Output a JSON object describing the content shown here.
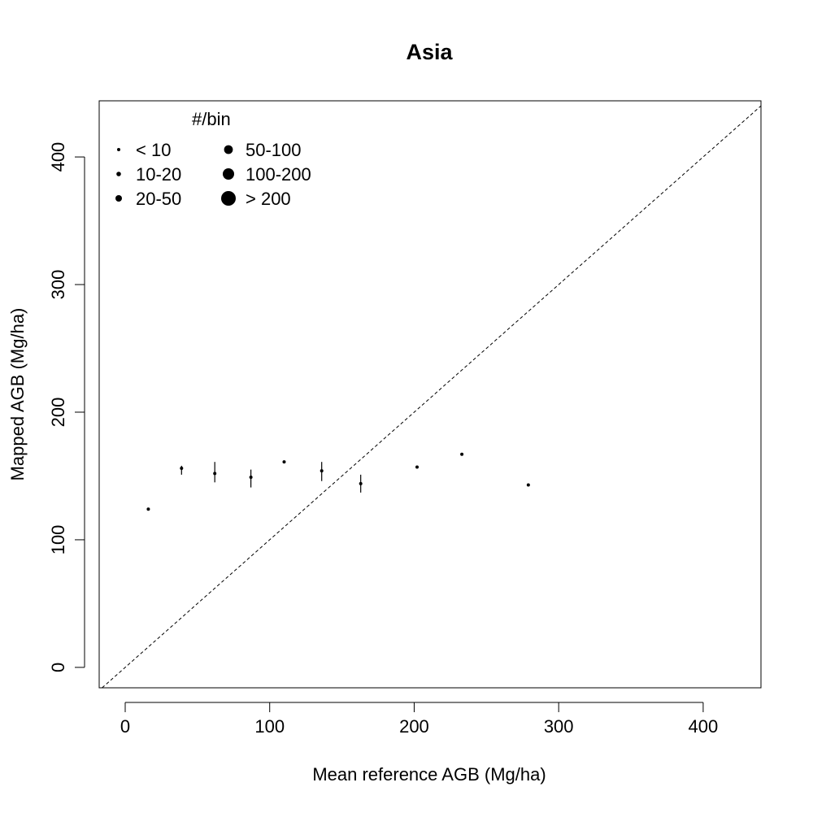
{
  "chart_data": {
    "type": "scatter",
    "title": "Asia",
    "xlabel": "Mean reference AGB (Mg/ha)",
    "ylabel": "Mapped AGB (Mg/ha)",
    "xlim": [
      -18,
      440
    ],
    "ylim": [
      -16,
      444
    ],
    "x_ticks": [
      0,
      100,
      200,
      300,
      400
    ],
    "y_ticks": [
      0,
      100,
      200,
      300,
      400
    ],
    "x_tick_labels": [
      "0",
      "100",
      "200",
      "300",
      "400"
    ],
    "y_tick_labels": [
      "0",
      "100",
      "200",
      "300",
      "400"
    ],
    "grid": false,
    "reference_line": "1:1 dashed",
    "legend": {
      "title": "#/bin",
      "position": "top-left",
      "entries": [
        {
          "label": "< 10",
          "size_rank": 1
        },
        {
          "label": "10-20",
          "size_rank": 2
        },
        {
          "label": "20-50",
          "size_rank": 3
        },
        {
          "label": "50-100",
          "size_rank": 4
        },
        {
          "label": "100-200",
          "size_rank": 5
        },
        {
          "label": "> 200",
          "size_rank": 6
        }
      ]
    },
    "points": [
      {
        "x": 16,
        "y": 124,
        "err_low": 124,
        "err_high": 124,
        "size_rank": 1
      },
      {
        "x": 39,
        "y": 156,
        "err_low": 151,
        "err_high": 158,
        "size_rank": 1
      },
      {
        "x": 62,
        "y": 152,
        "err_low": 145,
        "err_high": 161,
        "size_rank": 1
      },
      {
        "x": 87,
        "y": 149,
        "err_low": 141,
        "err_high": 155,
        "size_rank": 1
      },
      {
        "x": 110,
        "y": 161,
        "err_low": 161,
        "err_high": 161,
        "size_rank": 1
      },
      {
        "x": 136,
        "y": 154,
        "err_low": 146,
        "err_high": 161,
        "size_rank": 1
      },
      {
        "x": 163,
        "y": 144,
        "err_low": 137,
        "err_high": 151,
        "size_rank": 1
      },
      {
        "x": 202,
        "y": 157,
        "err_low": 157,
        "err_high": 157,
        "size_rank": 1
      },
      {
        "x": 233,
        "y": 167,
        "err_low": 167,
        "err_high": 167,
        "size_rank": 1
      },
      {
        "x": 279,
        "y": 143,
        "err_low": 143,
        "err_high": 143,
        "size_rank": 1
      }
    ]
  }
}
